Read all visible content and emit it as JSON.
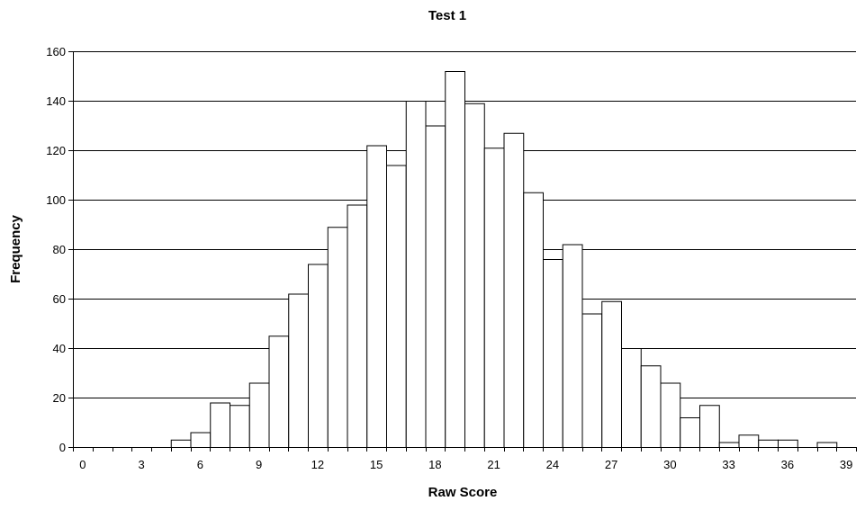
{
  "chart_data": {
    "type": "bar",
    "title": "Test 1",
    "xlabel": "Raw Score",
    "ylabel": "Frequency",
    "x": [
      0,
      1,
      2,
      3,
      4,
      5,
      6,
      7,
      8,
      9,
      10,
      11,
      12,
      13,
      14,
      15,
      16,
      17,
      18,
      19,
      20,
      21,
      22,
      23,
      24,
      25,
      26,
      27,
      28,
      29,
      30,
      31,
      32,
      33,
      34,
      35,
      36,
      37,
      38,
      39
    ],
    "values": [
      0,
      0,
      0,
      0,
      0,
      3,
      6,
      18,
      17,
      26,
      45,
      62,
      74,
      89,
      98,
      122,
      114,
      140,
      130,
      152,
      139,
      121,
      127,
      103,
      76,
      82,
      54,
      59,
      40,
      33,
      26,
      12,
      17,
      2,
      5,
      3,
      3,
      0,
      2,
      0
    ],
    "xlim": [
      0,
      39
    ],
    "ylim": [
      0,
      160
    ],
    "x_ticks": [
      0,
      3,
      6,
      9,
      12,
      15,
      18,
      21,
      24,
      27,
      30,
      33,
      36,
      39
    ],
    "y_ticks": [
      0,
      20,
      40,
      60,
      80,
      100,
      120,
      140,
      160
    ],
    "grid": "horizontal",
    "legend": "none",
    "colors": {
      "bar_fill": "#ffffff",
      "bar_stroke": "#000000",
      "grid": "#000000",
      "axis": "#000000"
    }
  }
}
